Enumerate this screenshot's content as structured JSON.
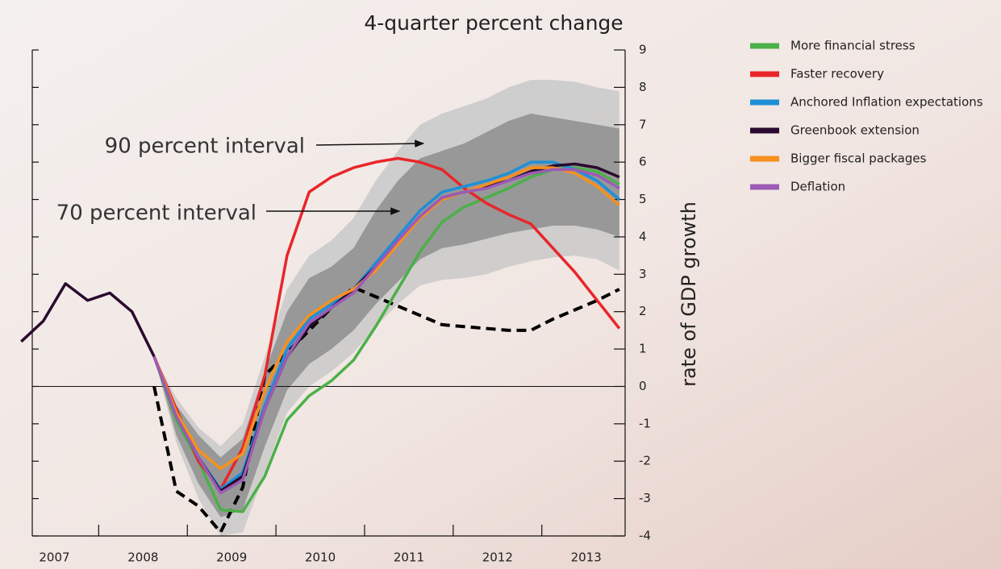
{
  "chart_data": {
    "type": "line",
    "title": "4-quarter percent change",
    "y_axis_label": "rate of GDP growth",
    "annotations": [
      "90 percent interval",
      "70 percent interval"
    ],
    "x": [
      2007.125,
      2007.375,
      2007.625,
      2007.875,
      2008.125,
      2008.375,
      2008.625,
      2008.875,
      2009.125,
      2009.375,
      2009.625,
      2009.875,
      2010.125,
      2010.375,
      2010.625,
      2010.875,
      2011.125,
      2011.375,
      2011.625,
      2011.875,
      2012.125,
      2012.375,
      2012.625,
      2012.875,
      2013.125,
      2013.375,
      2013.625,
      2013.875
    ],
    "xlim": [
      2007.25,
      2013.94
    ],
    "xticks": [
      {
        "value": 2007.5,
        "label": "2007"
      },
      {
        "value": 2008.5,
        "label": "2008"
      },
      {
        "value": 2009.5,
        "label": "2009"
      },
      {
        "value": 2010.5,
        "label": "2010"
      },
      {
        "value": 2011.5,
        "label": "2011"
      },
      {
        "value": 2012.5,
        "label": "2012"
      },
      {
        "value": 2013.5,
        "label": "2013"
      }
    ],
    "ylim": [
      -4,
      9
    ],
    "yticks": [
      -4,
      -3,
      -2,
      -1,
      0,
      1,
      2,
      3,
      4,
      5,
      6,
      7,
      8,
      9
    ],
    "legend": "top-right",
    "bands": [
      {
        "color": "#c9c9c9",
        "upper": [
          null,
          null,
          null,
          null,
          null,
          null,
          0.8,
          -0.3,
          -1.1,
          -1.6,
          -1.0,
          0.8,
          2.6,
          3.5,
          3.9,
          4.5,
          5.5,
          6.3,
          7.0,
          7.3,
          7.5,
          7.7,
          8.0,
          8.2,
          8.2,
          8.15,
          8.0,
          7.9
        ],
        "lower": [
          null,
          null,
          null,
          null,
          null,
          null,
          0.8,
          -1.5,
          -3.0,
          -4.0,
          -3.9,
          -2.3,
          -0.7,
          0.0,
          0.4,
          0.9,
          1.6,
          2.2,
          2.7,
          2.85,
          2.9,
          3.0,
          3.2,
          3.35,
          3.45,
          3.5,
          3.4,
          3.1
        ]
      },
      {
        "color": "#8e8e8e",
        "upper": [
          null,
          null,
          null,
          null,
          null,
          null,
          0.8,
          -0.5,
          -1.3,
          -1.9,
          -1.4,
          0.4,
          2.0,
          2.9,
          3.2,
          3.7,
          4.7,
          5.5,
          6.1,
          6.3,
          6.5,
          6.8,
          7.1,
          7.3,
          7.2,
          7.1,
          7.0,
          6.9
        ],
        "lower": [
          null,
          null,
          null,
          null,
          null,
          null,
          0.8,
          -1.3,
          -2.6,
          -3.5,
          -3.3,
          -1.6,
          -0.1,
          0.6,
          1.0,
          1.5,
          2.2,
          2.8,
          3.4,
          3.7,
          3.8,
          3.95,
          4.1,
          4.2,
          4.3,
          4.3,
          4.2,
          4.0
        ]
      }
    ],
    "series": [
      {
        "color": "#000000",
        "dashed": true,
        "values": [
          null,
          null,
          null,
          null,
          null,
          null,
          0.0,
          -2.8,
          -3.2,
          -3.9,
          -2.7,
          0.3,
          0.9,
          1.5,
          2.1,
          2.65,
          2.4,
          2.15,
          1.9,
          1.65,
          1.6,
          1.55,
          1.5,
          1.5,
          1.8,
          2.05,
          2.3,
          2.6
        ]
      },
      {
        "name": "More financial stress",
        "color": "#4cb048",
        "values": [
          null,
          null,
          null,
          null,
          null,
          null,
          0.8,
          -0.9,
          -2.0,
          -3.3,
          -3.35,
          -2.4,
          -0.9,
          -0.25,
          0.15,
          0.7,
          1.6,
          2.6,
          3.6,
          4.4,
          4.8,
          5.05,
          5.3,
          5.6,
          5.8,
          5.85,
          5.75,
          5.4
        ]
      },
      {
        "name": "Faster recovery",
        "color": "#e8262a",
        "values": [
          null,
          null,
          null,
          null,
          null,
          null,
          0.8,
          -0.6,
          -2.0,
          -2.75,
          -1.65,
          0.3,
          3.5,
          5.2,
          5.6,
          5.85,
          6.0,
          6.1,
          6.0,
          5.8,
          5.3,
          4.9,
          4.6,
          4.35,
          3.7,
          3.05,
          2.3,
          1.55
        ]
      },
      {
        "name": "Anchored Inflation expectations",
        "color": "#1f8fd6",
        "values": [
          null,
          null,
          null,
          null,
          null,
          null,
          0.8,
          -0.8,
          -1.9,
          -2.75,
          -2.3,
          -0.5,
          1.0,
          1.8,
          2.2,
          2.6,
          3.3,
          4.0,
          4.7,
          5.2,
          5.35,
          5.5,
          5.7,
          6.0,
          6.0,
          5.8,
          5.5,
          5.0
        ]
      },
      {
        "name": "Greenbook extension",
        "color": "#2a0a2e",
        "values": [
          1.2,
          1.75,
          2.75,
          2.3,
          2.5,
          2.0,
          0.8,
          -0.8,
          -1.9,
          -2.8,
          -2.4,
          -0.6,
          0.8,
          1.6,
          2.1,
          2.6,
          3.2,
          3.9,
          4.5,
          5.05,
          5.2,
          5.35,
          5.5,
          5.75,
          5.9,
          5.95,
          5.85,
          5.6
        ]
      },
      {
        "name": "Bigger fiscal packages",
        "color": "#f7901e",
        "values": [
          null,
          null,
          null,
          null,
          null,
          null,
          0.8,
          -0.7,
          -1.7,
          -2.2,
          -1.8,
          -0.1,
          1.2,
          1.9,
          2.3,
          2.6,
          3.1,
          3.8,
          4.5,
          5.0,
          5.2,
          5.4,
          5.6,
          5.85,
          5.85,
          5.7,
          5.35,
          4.85
        ]
      },
      {
        "name": "Deflation",
        "color": "#9c5bb5",
        "values": [
          null,
          null,
          null,
          null,
          null,
          null,
          0.8,
          -0.8,
          -1.9,
          -2.85,
          -2.5,
          -0.6,
          0.8,
          1.7,
          2.1,
          2.5,
          3.2,
          3.9,
          4.55,
          5.05,
          5.2,
          5.3,
          5.5,
          5.7,
          5.8,
          5.8,
          5.65,
          5.3
        ]
      }
    ]
  }
}
